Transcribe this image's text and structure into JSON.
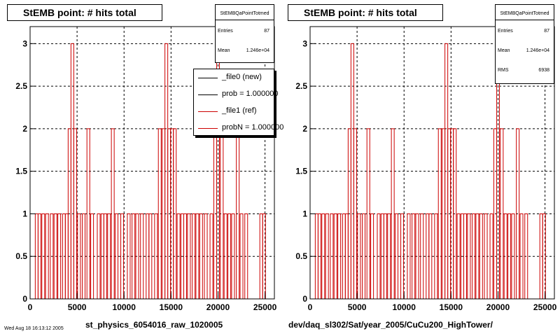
{
  "chart_data": [
    {
      "type": "bar",
      "title": "StEMB point: # hits total",
      "xlabel": "st_physics_6054016_raw_1020005",
      "ylabel": "",
      "xlim": [
        0,
        26000
      ],
      "ylim": [
        0,
        3.2
      ],
      "xticks": [
        "0",
        "5000",
        "10000",
        "15000",
        "20000",
        "25000"
      ],
      "yticks": [
        "0",
        "0.5",
        "1",
        "1.5",
        "2",
        "2.5",
        "3"
      ],
      "grid": true,
      "series": [
        {
          "name": "_file1 (ref)",
          "color": "#cc0000",
          "values": [
            [
              700,
              1
            ],
            [
              1000,
              1
            ],
            [
              1400,
              1
            ],
            [
              1800,
              1
            ],
            [
              2300,
              1
            ],
            [
              2700,
              1
            ],
            [
              3100,
              1
            ],
            [
              3600,
              1
            ],
            [
              3900,
              1
            ],
            [
              4200,
              2
            ],
            [
              4500,
              3
            ],
            [
              4800,
              2
            ],
            [
              5200,
              1
            ],
            [
              5700,
              1
            ],
            [
              6200,
              2
            ],
            [
              6600,
              1
            ],
            [
              7300,
              1
            ],
            [
              7700,
              1
            ],
            [
              8000,
              1
            ],
            [
              8400,
              1
            ],
            [
              8800,
              2
            ],
            [
              9200,
              1
            ],
            [
              9800,
              1
            ],
            [
              10500,
              1
            ],
            [
              11000,
              1
            ],
            [
              11400,
              1
            ],
            [
              11900,
              1
            ],
            [
              12500,
              1
            ],
            [
              12800,
              1
            ],
            [
              13400,
              1
            ],
            [
              13800,
              2
            ],
            [
              14200,
              2
            ],
            [
              14500,
              3
            ],
            [
              14800,
              2
            ],
            [
              15100,
              2
            ],
            [
              15400,
              2
            ],
            [
              15800,
              1
            ],
            [
              16200,
              1
            ],
            [
              16500,
              1
            ],
            [
              16900,
              1
            ],
            [
              17400,
              1
            ],
            [
              17800,
              1
            ],
            [
              18200,
              1
            ],
            [
              18700,
              1
            ],
            [
              19300,
              1
            ],
            [
              19700,
              2
            ],
            [
              20000,
              3
            ],
            [
              20400,
              2
            ],
            [
              20800,
              1
            ],
            [
              21200,
              1
            ],
            [
              21600,
              1
            ],
            [
              22100,
              2
            ],
            [
              22500,
              1
            ],
            [
              23000,
              1
            ],
            [
              24600,
              1
            ],
            [
              24900,
              1
            ]
          ]
        }
      ],
      "stats": {
        "name": "StEMBQaPointTotmed",
        "entries_label": "Entries",
        "entries": "87",
        "mean_label": "Mean",
        "mean": "1.246e+04"
      },
      "legend": [
        {
          "label": "_file0 (new)",
          "color": "#000000"
        },
        {
          "label": "prob = 1.000000",
          "color": "#000000"
        },
        {
          "label": "_file1 (ref)",
          "color": "#cc0000"
        },
        {
          "label": "probN = 1.000000",
          "color": "#cc0000"
        }
      ]
    },
    {
      "type": "bar",
      "title": "StEMB point: # hits total",
      "xlabel": "dev/daq_sl302/Sat/year_2005/CuCu200_HighTower/",
      "ylabel": "",
      "xlim": [
        0,
        26000
      ],
      "ylim": [
        0,
        3.2
      ],
      "xticks": [
        "0",
        "5000",
        "10000",
        "15000",
        "20000",
        "25000"
      ],
      "yticks": [
        "0",
        "0.5",
        "1",
        "1.5",
        "2",
        "2.5",
        "3"
      ],
      "grid": true,
      "series": [
        {
          "name": "",
          "color": "#cc0000",
          "values": [
            [
              700,
              1
            ],
            [
              1000,
              1
            ],
            [
              1400,
              1
            ],
            [
              1800,
              1
            ],
            [
              2300,
              1
            ],
            [
              2700,
              1
            ],
            [
              3100,
              1
            ],
            [
              3600,
              1
            ],
            [
              3900,
              1
            ],
            [
              4200,
              2
            ],
            [
              4500,
              3
            ],
            [
              4800,
              2
            ],
            [
              5200,
              1
            ],
            [
              5700,
              1
            ],
            [
              6200,
              2
            ],
            [
              6600,
              1
            ],
            [
              7300,
              1
            ],
            [
              7700,
              1
            ],
            [
              8000,
              1
            ],
            [
              8400,
              1
            ],
            [
              8800,
              2
            ],
            [
              9200,
              1
            ],
            [
              9800,
              1
            ],
            [
              10500,
              1
            ],
            [
              11000,
              1
            ],
            [
              11400,
              1
            ],
            [
              11900,
              1
            ],
            [
              12500,
              1
            ],
            [
              12800,
              1
            ],
            [
              13400,
              1
            ],
            [
              13800,
              2
            ],
            [
              14200,
              2
            ],
            [
              14500,
              3
            ],
            [
              14800,
              2
            ],
            [
              15100,
              2
            ],
            [
              15400,
              2
            ],
            [
              15800,
              1
            ],
            [
              16200,
              1
            ],
            [
              16500,
              1
            ],
            [
              16900,
              1
            ],
            [
              17400,
              1
            ],
            [
              17800,
              1
            ],
            [
              18200,
              1
            ],
            [
              18700,
              1
            ],
            [
              19300,
              1
            ],
            [
              19700,
              2
            ],
            [
              20000,
              3
            ],
            [
              20400,
              2
            ],
            [
              20800,
              1
            ],
            [
              21200,
              1
            ],
            [
              21600,
              1
            ],
            [
              22100,
              2
            ],
            [
              22500,
              1
            ],
            [
              23000,
              1
            ],
            [
              24600,
              1
            ],
            [
              24900,
              1
            ]
          ]
        }
      ],
      "stats": {
        "name": "StEMBQaPointTotmed",
        "entries_label": "Entries",
        "entries": "87",
        "mean_label": "Mean",
        "mean": "1.246e+04",
        "rms_label": "RMS",
        "rms": "6938"
      }
    }
  ],
  "footer_text": "Wed Aug 18 16:13:12 2005"
}
